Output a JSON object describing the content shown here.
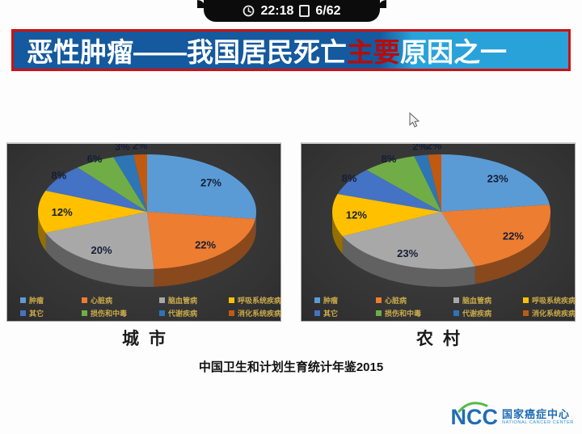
{
  "status_bar": {
    "time": "22:18",
    "page_indicator": "6/62"
  },
  "banner": {
    "title_pre": "恶性肿瘤——我国居民死亡",
    "title_highlight": "主要",
    "title_post": "原因之一",
    "colors": {
      "bg_left": "#15599E",
      "bg_right": "#29A2DA",
      "border": "#CE1111",
      "text": "#FFFFFF",
      "highlight": "#B50D0D"
    }
  },
  "chart_data": [
    {
      "type": "pie",
      "style": "3d",
      "title": "城市",
      "categories": [
        "肿瘤",
        "心脏病",
        "脑血管病",
        "呼吸系统疾病",
        "其它",
        "损伤和中毒",
        "代谢疾病",
        "消化系统疾病"
      ],
      "values": [
        27,
        22,
        20,
        12,
        8,
        6,
        3,
        2
      ],
      "unit": "%",
      "colors": [
        "#5B9BD5",
        "#ED7D31",
        "#A8A8A8",
        "#FFC000",
        "#4472C4",
        "#70AD47",
        "#2E75B6",
        "#C05A11"
      ],
      "legend_position": "bottom",
      "label_format": "percent",
      "start_angle_deg": -90,
      "direction": "clockwise"
    },
    {
      "type": "pie",
      "style": "3d",
      "title": "农村",
      "categories": [
        "肿瘤",
        "心脏病",
        "脑血管病",
        "呼吸系统疾病",
        "其它",
        "损伤和中毒",
        "代谢疾病",
        "消化系统疾病"
      ],
      "values": [
        23,
        22,
        23,
        12,
        8,
        8,
        2,
        2
      ],
      "unit": "%",
      "colors": [
        "#5B9BD5",
        "#ED7D31",
        "#A8A8A8",
        "#FFC000",
        "#4472C4",
        "#70AD47",
        "#2E75B6",
        "#C05A11"
      ],
      "legend_position": "bottom",
      "label_format": "percent",
      "start_angle_deg": -90,
      "direction": "clockwise"
    }
  ],
  "footer": {
    "source": "中国卫生和计划生育统计年鉴2015"
  },
  "logo": {
    "abbr": "NCC",
    "name_cn": "国家癌症中心",
    "name_en": "NATIONAL CANCER CENTER",
    "colors": {
      "blue": "#1F6CB4",
      "green": "#57B947"
    }
  },
  "theme": {
    "panel_bg": "#363636",
    "legend_text": "#C9A94B",
    "slide_bg": "#FDFDFD",
    "statusbar_bg": "#0C0C0C"
  }
}
